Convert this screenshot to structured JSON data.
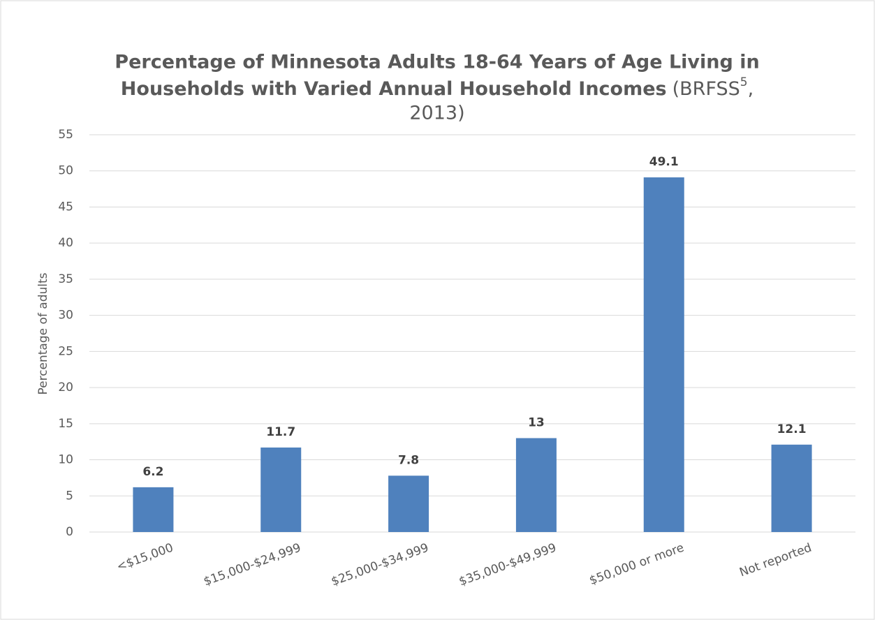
{
  "chart_data": {
    "type": "bar",
    "title": [
      "Percentage of Minnesota Adults 18-64 Years of Age Living in",
      "Households with Varied Annual Household Incomes"
    ],
    "subtitle": [
      "(BRFSS",
      "5",
      ",",
      "2013)"
    ],
    "y_label": "Percentage of adults",
    "categories": [
      "<$15,000",
      "$15,000-$24,999",
      "$25,000-$34,999",
      "$35,000-$49,999",
      "$50,000 or more",
      "Not reported"
    ],
    "values": [
      6.2,
      11.7,
      7.8,
      13,
      49.1,
      12.1
    ],
    "color": "#4f81bd",
    "ylim": [
      0,
      55
    ],
    "yticks": [
      0,
      5,
      10,
      15,
      20,
      25,
      30,
      35,
      40,
      45,
      50,
      55
    ],
    "grid": true
  }
}
